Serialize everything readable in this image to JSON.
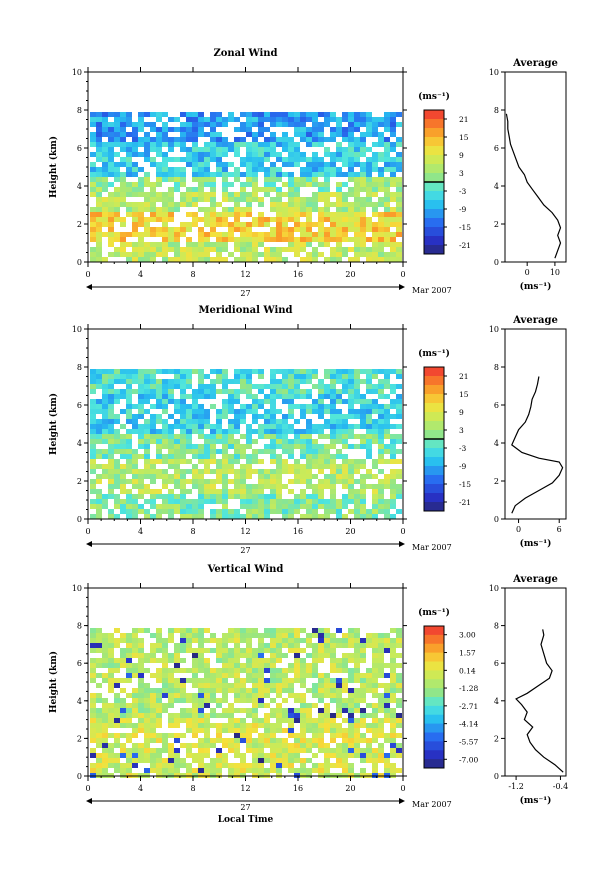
{
  "chart_data": [
    {
      "type": "heatmap",
      "title": "Zonal Wind",
      "ylabel": "Height (km)",
      "xlabel": "",
      "xlim": [
        0,
        24
      ],
      "ylim": [
        0,
        10
      ],
      "x_ticks": [
        "0",
        "4",
        "8",
        "12",
        "16",
        "20",
        "0"
      ],
      "y_ticks": [
        "0",
        "2",
        "4",
        "6",
        "8",
        "10"
      ],
      "date_label": "27",
      "month_label": "Mar 2007",
      "colorbar": {
        "unit_label": "(ms⁻¹)",
        "ticks": [
          "21",
          "15",
          "9",
          "3",
          "-3",
          "-9",
          "-15",
          "-21"
        ],
        "range": [
          -24,
          24
        ],
        "zero_line": 0
      },
      "data_top_km": 7.8,
      "layers": [
        {
          "from_km": 0.0,
          "to_km": 1.0,
          "value": 6
        },
        {
          "from_km": 1.0,
          "to_km": 2.6,
          "value": 12
        },
        {
          "from_km": 2.6,
          "to_km": 3.6,
          "value": 5
        },
        {
          "from_km": 3.6,
          "to_km": 4.6,
          "value": 2
        },
        {
          "from_km": 4.6,
          "to_km": 6.2,
          "value": -6
        },
        {
          "from_km": 6.2,
          "to_km": 7.8,
          "value": -10
        }
      ],
      "profile": {
        "title": "Average",
        "xlabel": "(ms⁻¹)",
        "x_ticks": [
          0,
          10
        ],
        "xlim": [
          -8,
          14
        ],
        "ylim": [
          0,
          10
        ],
        "y_ticks": [
          "0",
          "2",
          "4",
          "6",
          "8",
          "10"
        ],
        "points": [
          [
            10,
            0.2
          ],
          [
            11,
            0.6
          ],
          [
            12,
            1.0
          ],
          [
            11,
            1.4
          ],
          [
            12,
            1.8
          ],
          [
            11,
            2.2
          ],
          [
            9,
            2.6
          ],
          [
            6,
            3.0
          ],
          [
            4,
            3.4
          ],
          [
            2,
            3.8
          ],
          [
            0,
            4.2
          ],
          [
            -1,
            4.6
          ],
          [
            -3,
            5.0
          ],
          [
            -4,
            5.4
          ],
          [
            -5,
            5.8
          ],
          [
            -6,
            6.2
          ],
          [
            -6.5,
            6.6
          ],
          [
            -7,
            7.0
          ],
          [
            -7,
            7.4
          ],
          [
            -7.5,
            7.8
          ]
        ]
      }
    },
    {
      "type": "heatmap",
      "title": "Meridional Wind",
      "ylabel": "Height (km)",
      "xlabel": "",
      "xlim": [
        0,
        24
      ],
      "ylim": [
        0,
        10
      ],
      "x_ticks": [
        "0",
        "4",
        "8",
        "12",
        "16",
        "20",
        "0"
      ],
      "y_ticks": [
        "0",
        "2",
        "4",
        "6",
        "8",
        "10"
      ],
      "date_label": "27",
      "month_label": "Mar 2007",
      "colorbar": {
        "unit_label": "(ms⁻¹)",
        "ticks": [
          "21",
          "15",
          "9",
          "3",
          "-3",
          "-9",
          "-15",
          "-21"
        ],
        "range": [
          -24,
          24
        ],
        "zero_line": 0
      },
      "data_top_km": 7.8,
      "layers": [
        {
          "from_km": 0.0,
          "to_km": 1.2,
          "value": 1
        },
        {
          "from_km": 1.2,
          "to_km": 3.2,
          "value": 5
        },
        {
          "from_km": 3.2,
          "to_km": 4.4,
          "value": 0
        },
        {
          "from_km": 4.4,
          "to_km": 6.6,
          "value": -5
        },
        {
          "from_km": 6.6,
          "to_km": 7.8,
          "value": -3
        }
      ],
      "profile": {
        "title": "Average",
        "xlabel": "(ms⁻¹)",
        "x_ticks": [
          0,
          6
        ],
        "xlim": [
          -2,
          7
        ],
        "ylim": [
          0,
          10
        ],
        "y_ticks": [
          "0",
          "2",
          "4",
          "6",
          "8",
          "10"
        ],
        "points": [
          [
            -1,
            0.3
          ],
          [
            -0.5,
            0.7
          ],
          [
            1,
            1.1
          ],
          [
            3,
            1.5
          ],
          [
            5,
            1.9
          ],
          [
            6,
            2.3
          ],
          [
            6.5,
            2.7
          ],
          [
            6,
            3.0
          ],
          [
            3,
            3.2
          ],
          [
            0.5,
            3.5
          ],
          [
            -1,
            3.9
          ],
          [
            -0.5,
            4.3
          ],
          [
            0,
            4.7
          ],
          [
            1,
            5.1
          ],
          [
            1.5,
            5.5
          ],
          [
            1.8,
            5.9
          ],
          [
            2,
            6.3
          ],
          [
            2.5,
            6.7
          ],
          [
            2.8,
            7.1
          ],
          [
            3,
            7.5
          ]
        ]
      }
    },
    {
      "type": "heatmap",
      "title": "Vertical Wind",
      "ylabel": "Height (km)",
      "xlabel": "Local Time",
      "xlim": [
        0,
        24
      ],
      "ylim": [
        0,
        10
      ],
      "x_ticks": [
        "0",
        "4",
        "8",
        "12",
        "16",
        "20",
        "0"
      ],
      "y_ticks": [
        "0",
        "2",
        "4",
        "6",
        "8",
        "10"
      ],
      "date_label": "27",
      "month_label": "Mar 2007",
      "colorbar": {
        "unit_label": "(ms⁻¹)",
        "ticks": [
          "3.00",
          "1.57",
          "0.14",
          "-1.28",
          "-2.71",
          "-4.14",
          "-5.57",
          "-7.00"
        ],
        "range": [
          -7.7,
          3.7
        ],
        "zero_line": null
      },
      "data_top_km": 7.8,
      "layers": [
        {
          "from_km": 0.0,
          "to_km": 3.2,
          "value": -0.2
        },
        {
          "from_km": 3.2,
          "to_km": 7.8,
          "value": -0.7
        }
      ],
      "profile": {
        "title": "Average",
        "xlabel": "(ms⁻¹)",
        "x_ticks": [
          -1.2,
          -0.4
        ],
        "xlim": [
          -1.4,
          -0.3
        ],
        "ylim": [
          0,
          10
        ],
        "y_ticks": [
          "0",
          "2",
          "4",
          "6",
          "8",
          "10"
        ],
        "points": [
          [
            -0.35,
            0.2
          ],
          [
            -0.5,
            0.6
          ],
          [
            -0.7,
            1.0
          ],
          [
            -0.85,
            1.4
          ],
          [
            -0.95,
            1.8
          ],
          [
            -1.0,
            2.2
          ],
          [
            -0.9,
            2.6
          ],
          [
            -1.05,
            3.0
          ],
          [
            -1.0,
            3.4
          ],
          [
            -1.1,
            3.8
          ],
          [
            -1.2,
            4.1
          ],
          [
            -1.0,
            4.4
          ],
          [
            -0.8,
            4.8
          ],
          [
            -0.6,
            5.2
          ],
          [
            -0.55,
            5.6
          ],
          [
            -0.65,
            6.0
          ],
          [
            -0.7,
            6.5
          ],
          [
            -0.75,
            7.0
          ],
          [
            -0.7,
            7.5
          ],
          [
            -0.72,
            7.8
          ]
        ]
      }
    }
  ]
}
